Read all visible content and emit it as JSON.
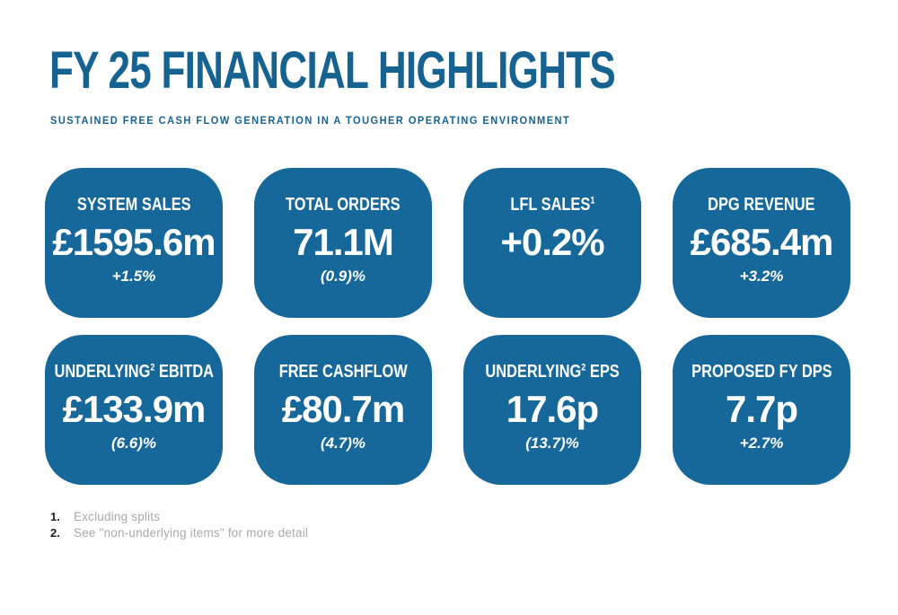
{
  "page": {
    "title": "FY 25 FINANCIAL HIGHLIGHTS",
    "subtitle": "SUSTAINED FREE CASH FLOW GENERATION IN A TOUGHER OPERATING ENVIRONMENT"
  },
  "colors": {
    "card_blue": "#17689A",
    "title_blue": "#166392",
    "card_text": "#FFFFFF",
    "footnote_number": "#1F1F1F",
    "footnote_text": "#A9A9A9"
  },
  "cards": [
    {
      "label_pre": "SYSTEM SALES",
      "label_sup": "",
      "label_post": "",
      "value": "£1595.6m",
      "change": "+1.5%"
    },
    {
      "label_pre": "TOTAL ORDERS",
      "label_sup": "",
      "label_post": "",
      "value": "71.1M",
      "change": "(0.9)%"
    },
    {
      "label_pre": "LFL SALES",
      "label_sup": "1",
      "label_post": "",
      "value": "+0.2%",
      "change": ""
    },
    {
      "label_pre": "DPG REVENUE",
      "label_sup": "",
      "label_post": "",
      "value": "£685.4m",
      "change": "+3.2%"
    },
    {
      "label_pre": "UNDERLYING",
      "label_sup": "2",
      "label_post": " EBITDA",
      "value": "£133.9m",
      "change": "(6.6)%"
    },
    {
      "label_pre": "FREE CASHFLOW",
      "label_sup": "",
      "label_post": "",
      "value": "£80.7m",
      "change": "(4.7)%"
    },
    {
      "label_pre": "UNDERLYING",
      "label_sup": "2",
      "label_post": " EPS",
      "value": "17.6p",
      "change": "(13.7)%"
    },
    {
      "label_pre": "PROPOSED FY DPS",
      "label_sup": "",
      "label_post": "",
      "value": "7.7p",
      "change": "+2.7%"
    }
  ],
  "footnotes": [
    {
      "num": "1.",
      "text": "Excluding splits"
    },
    {
      "num": "2.",
      "text": "See \"non-underlying items\" for more detail"
    }
  ]
}
